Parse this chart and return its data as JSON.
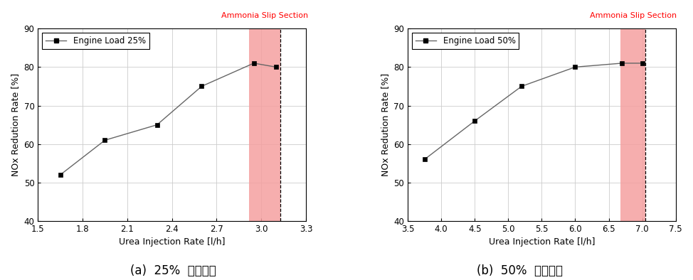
{
  "chart1": {
    "x": [
      1.65,
      1.95,
      2.3,
      2.6,
      2.95,
      3.1
    ],
    "y": [
      52,
      61,
      65,
      75,
      81,
      80
    ],
    "xlim": [
      1.5,
      3.3
    ],
    "xticks": [
      1.5,
      1.8,
      2.1,
      2.4,
      2.7,
      3.0,
      3.3
    ],
    "ylim": [
      40,
      90
    ],
    "yticks": [
      40,
      50,
      60,
      70,
      80,
      90
    ],
    "xlabel": "Urea Injection Rate [l/h]",
    "ylabel": "NOx Redution Rate [%]",
    "legend_label": "Engine Load 25%",
    "slip_xmin": 2.92,
    "slip_xmax": 3.13,
    "slip_label": "Ammonia Slip Section",
    "caption": "(a)  25%  부하조건"
  },
  "chart2": {
    "x": [
      3.75,
      4.5,
      5.2,
      6.0,
      6.7,
      7.0
    ],
    "y": [
      56,
      66,
      75,
      80,
      81,
      81
    ],
    "xlim": [
      3.5,
      7.5
    ],
    "xticks": [
      3.5,
      4.0,
      4.5,
      5.0,
      5.5,
      6.0,
      6.5,
      7.0,
      7.5
    ],
    "ylim": [
      40,
      90
    ],
    "yticks": [
      40,
      50,
      60,
      70,
      80,
      90
    ],
    "xlabel": "Urea Injection Rate [l/h]",
    "ylabel": "NOx Redution Rate [%]",
    "legend_label": "Engine Load 50%",
    "slip_xmin": 6.68,
    "slip_xmax": 7.05,
    "slip_label": "Ammonia Slip Section",
    "caption": "(b)  50%  부하조건"
  },
  "line_color": "#666666",
  "marker_color": "black",
  "slip_fill_color": "#f5a0a0",
  "slip_text_color": "red",
  "background_color": "white",
  "grid_color": "#cccccc"
}
